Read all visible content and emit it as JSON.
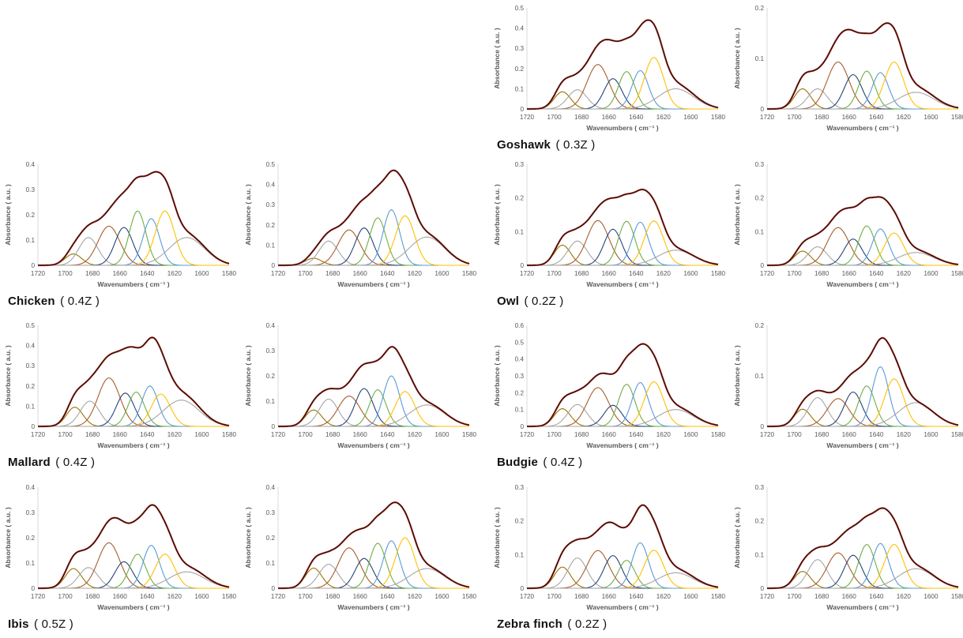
{
  "page": {
    "background": "#ffffff"
  },
  "chart_data": {
    "type": "line",
    "description": "FTIR amide-I band deconvolution: measured spectrum (red), total fit envelope (black), and 8 Gaussian component peaks per chart",
    "xlabel": "Wavenumbers ( cm⁻¹ )",
    "ylabel": "Absorbance ( a.u. )",
    "x_range": [
      1720,
      1580
    ],
    "x_reversed": true,
    "x_ticks": [
      "1720",
      "1700",
      "1680",
      "1660",
      "1640",
      "1620",
      "1600",
      "1580"
    ],
    "peak_centers": [
      1694,
      1683,
      1668,
      1657,
      1647,
      1637,
      1627,
      1611
    ],
    "peak_sigmas": [
      6,
      7,
      8,
      6.5,
      6,
      6,
      7,
      13
    ],
    "component_colors": [
      "#997300",
      "#A6A6A6",
      "#A85D2B",
      "#264478",
      "#70AD47",
      "#5B9BD5",
      "#FFC000",
      "#A6A6A6"
    ],
    "envelope_color": "#151515",
    "fit_color": "#D62E1F",
    "axis_line_color": "#BFBFBF",
    "tick_text_color": "#595959",
    "charts": [
      {
        "panel": "Goshawk",
        "position": "left",
        "ylim": [
          0,
          0.5
        ],
        "y_tick_labels": [
          "0",
          "0.1",
          "0.2",
          "0.3",
          "0.4",
          "0.5"
        ],
        "envelope_max": 0.44,
        "peak_heights": [
          0.085,
          0.095,
          0.22,
          0.15,
          0.185,
          0.19,
          0.255,
          0.1
        ]
      },
      {
        "panel": "Goshawk",
        "position": "right",
        "ylim": [
          0,
          0.2
        ],
        "y_tick_labels": [
          "0",
          "0.1",
          "0.2"
        ],
        "envelope_max": 0.17,
        "peak_heights": [
          0.04,
          0.04,
          0.093,
          0.068,
          0.075,
          0.072,
          0.093,
          0.033
        ]
      },
      {
        "panel": "Chicken",
        "position": "left",
        "ylim": [
          0,
          0.4
        ],
        "y_tick_labels": [
          "0",
          "0.1",
          "0.2",
          "0.3",
          "0.4"
        ],
        "envelope_max": 0.37,
        "peak_heights": [
          0.045,
          0.11,
          0.155,
          0.15,
          0.215,
          0.185,
          0.215,
          0.11
        ]
      },
      {
        "panel": "Chicken",
        "position": "right",
        "ylim": [
          0,
          0.5
        ],
        "y_tick_labels": [
          "0",
          "0.1",
          "0.2",
          "0.3",
          "0.4",
          "0.5"
        ],
        "envelope_max": 0.47,
        "peak_heights": [
          0.035,
          0.12,
          0.175,
          0.185,
          0.235,
          0.275,
          0.245,
          0.14
        ]
      },
      {
        "panel": "Owl",
        "position": "left",
        "ylim": [
          0,
          0.3
        ],
        "y_tick_labels": [
          "0",
          "0.1",
          "0.2",
          "0.3"
        ],
        "envelope_max": 0.225,
        "peak_heights": [
          0.06,
          0.072,
          0.133,
          0.107,
          0.131,
          0.128,
          0.132,
          0.045
        ]
      },
      {
        "panel": "Owl",
        "position": "right",
        "ylim": [
          0,
          0.3
        ],
        "y_tick_labels": [
          "0",
          "0.1",
          "0.2",
          "0.3"
        ],
        "envelope_max": 0.203,
        "peak_heights": [
          0.042,
          0.055,
          0.112,
          0.078,
          0.117,
          0.108,
          0.096,
          0.038
        ]
      },
      {
        "panel": "Mallard",
        "position": "left",
        "ylim": [
          0,
          0.5
        ],
        "y_tick_labels": [
          "0",
          "0.1",
          "0.2",
          "0.3",
          "0.4",
          "0.5"
        ],
        "envelope_max": 0.44,
        "peak_centers": [
          1693,
          1682,
          1668,
          1656,
          1648,
          1638,
          1630,
          1615
        ],
        "peak_heights": [
          0.095,
          0.125,
          0.24,
          0.165,
          0.17,
          0.2,
          0.16,
          0.13
        ]
      },
      {
        "panel": "Mallard",
        "position": "right",
        "ylim": [
          0,
          0.4
        ],
        "y_tick_labels": [
          "0",
          "0.1",
          "0.2",
          "0.3",
          "0.4"
        ],
        "envelope_max": 0.315,
        "peak_heights": [
          0.065,
          0.108,
          0.12,
          0.15,
          0.145,
          0.2,
          0.138,
          0.085
        ]
      },
      {
        "panel": "Budgie",
        "position": "left",
        "ylim": [
          0,
          0.6
        ],
        "y_tick_labels": [
          "0",
          "0.1",
          "0.2",
          "0.3",
          "0.4",
          "0.5",
          "0.6"
        ],
        "envelope_max": 0.49,
        "peak_heights": [
          0.105,
          0.13,
          0.23,
          0.125,
          0.25,
          0.26,
          0.265,
          0.1
        ]
      },
      {
        "panel": "Budgie",
        "position": "right",
        "ylim": [
          0,
          0.2
        ],
        "y_tick_labels": [
          "0",
          "0.1",
          "0.2"
        ],
        "envelope_max": 0.175,
        "peak_heights": [
          0.034,
          0.057,
          0.055,
          0.068,
          0.08,
          0.118,
          0.094,
          0.047
        ]
      },
      {
        "panel": "Ibis",
        "position": "left",
        "ylim": [
          0,
          0.4
        ],
        "y_tick_labels": [
          "0",
          "0.1",
          "0.2",
          "0.3",
          "0.4"
        ],
        "envelope_max": 0.33,
        "peak_heights": [
          0.078,
          0.082,
          0.18,
          0.105,
          0.135,
          0.17,
          0.135,
          0.065
        ]
      },
      {
        "panel": "Ibis",
        "position": "right",
        "ylim": [
          0,
          0.4
        ],
        "y_tick_labels": [
          "0",
          "0.1",
          "0.2",
          "0.3",
          "0.4"
        ],
        "envelope_max": 0.34,
        "peak_heights": [
          0.08,
          0.095,
          0.16,
          0.118,
          0.178,
          0.188,
          0.2,
          0.078
        ]
      },
      {
        "panel": "Zebra finch",
        "position": "left",
        "ylim": [
          0,
          0.3
        ],
        "y_tick_labels": [
          "0",
          "0.1",
          "0.2",
          "0.3"
        ],
        "envelope_max": 0.247,
        "peak_heights": [
          0.063,
          0.09,
          0.112,
          0.097,
          0.083,
          0.135,
          0.113,
          0.046
        ]
      },
      {
        "panel": "Zebra finch",
        "position": "right",
        "ylim": [
          0,
          0.3
        ],
        "y_tick_labels": [
          "0",
          "0.1",
          "0.2",
          "0.3"
        ],
        "envelope_max": 0.238,
        "peak_heights": [
          0.05,
          0.085,
          0.105,
          0.098,
          0.13,
          0.133,
          0.13,
          0.058
        ]
      }
    ]
  },
  "panels": [
    {
      "name": "Goshawk",
      "suffix": "( 0.3Z )",
      "col": "right",
      "row": 0,
      "chart_indices": [
        0,
        1
      ]
    },
    {
      "name": "Chicken",
      "suffix": "( 0.4Z )",
      "col": "left",
      "row": 1,
      "chart_indices": [
        2,
        3
      ]
    },
    {
      "name": "Owl",
      "suffix": "( 0.2Z )",
      "col": "right",
      "row": 1,
      "chart_indices": [
        4,
        5
      ]
    },
    {
      "name": "Mallard",
      "suffix": "( 0.4Z )",
      "col": "left",
      "row": 2,
      "chart_indices": [
        6,
        7
      ]
    },
    {
      "name": "Budgie",
      "suffix": "( 0.4Z )",
      "col": "right",
      "row": 2,
      "chart_indices": [
        8,
        9
      ]
    },
    {
      "name": "Ibis",
      "suffix": "( 0.5Z )",
      "col": "left",
      "row": 3,
      "chart_indices": [
        10,
        11
      ]
    },
    {
      "name": "Zebra finch",
      "suffix": "( 0.2Z )",
      "col": "right",
      "row": 3,
      "chart_indices": [
        12,
        13
      ]
    }
  ]
}
